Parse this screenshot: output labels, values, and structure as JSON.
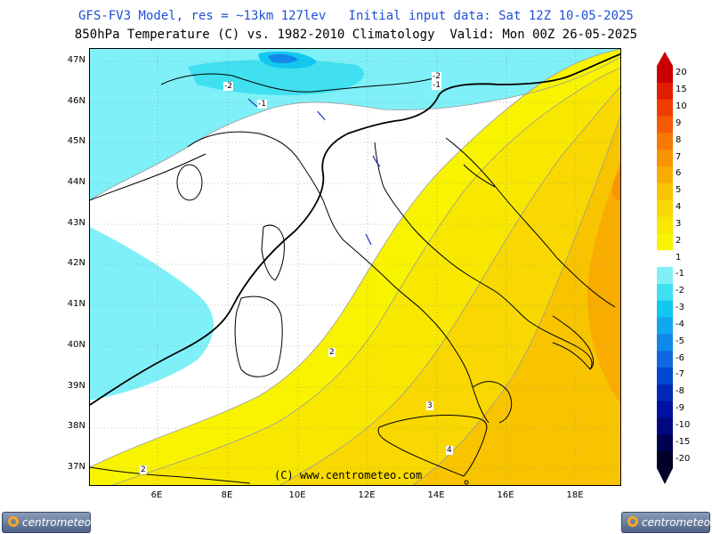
{
  "header": {
    "line1": "GFS-FV3 Model, res = ~13km 127lev   Initial input data: Sat 12Z 10-05-2025",
    "line2": "850hPa Temperature (C) vs. 1982-2010 Climatology  Valid: Mon 00Z 26-05-2025"
  },
  "map": {
    "lat_labels": [
      "47N",
      "46N",
      "45N",
      "44N",
      "43N",
      "42N",
      "41N",
      "40N",
      "39N",
      "38N",
      "37N"
    ],
    "lon_labels": [
      "6E",
      "8E",
      "10E",
      "12E",
      "14E",
      "16E",
      "18E"
    ],
    "contour_labels": [
      "-2",
      "-1",
      "-2",
      "-1",
      "2",
      "3",
      "4",
      "2"
    ],
    "copyright": "(C) www.centrometeo.com"
  },
  "colorbar": {
    "labels": [
      "20",
      "15",
      "10",
      "9",
      "8",
      "7",
      "6",
      "5",
      "4",
      "3",
      "2",
      "1",
      "-1",
      "-2",
      "-3",
      "-4",
      "-5",
      "-6",
      "-7",
      "-8",
      "-9",
      "-10",
      "-15",
      "-20"
    ],
    "colors": [
      "#c80000",
      "#e01e00",
      "#f03c00",
      "#f65a00",
      "#f87800",
      "#f89400",
      "#f8ac00",
      "#f8c400",
      "#f8d800",
      "#f8e800",
      "#f8f400",
      "#ffffff",
      "#80f0f8",
      "#40e0f0",
      "#10c8f0",
      "#10a8f0",
      "#1088e8",
      "#1068e0",
      "#0048d0",
      "#0028b8",
      "#0010a0",
      "#000880",
      "#000050",
      "#000028"
    ]
  },
  "logos": {
    "left": {
      "text": "centrometeo"
    },
    "right": {
      "text": "centrometeo"
    }
  }
}
